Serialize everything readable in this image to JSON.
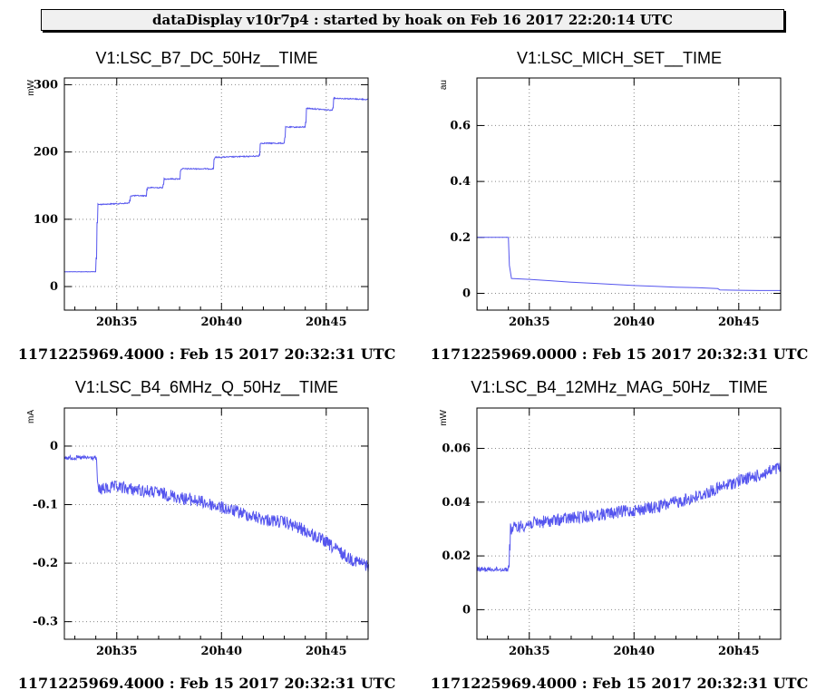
{
  "banner": "dataDisplay v10r7p4 : started by hoak on Feb 16 2017 22:20:14 UTC",
  "x_ticks": [
    "20h35",
    "20h40",
    "20h45"
  ],
  "colors": {
    "trace": "#5555ee",
    "grid": "#888888",
    "frame": "#000000"
  },
  "chart_data": [
    {
      "type": "line",
      "title": "V1:LSC_B7_DC_50Hz__TIME",
      "ylabel": "mW",
      "footer": "1171225969.4000 : Feb 15 2017 20:32:31 UTC",
      "xlim": [
        32.5,
        47.0
      ],
      "ylim": [
        -35,
        310
      ],
      "yticks": [
        0,
        100,
        200,
        300
      ],
      "ytick_labels": [
        "0",
        "100",
        "200",
        "300"
      ],
      "grid": true,
      "noise": 0.6,
      "series": [
        {
          "x": [
            32.5,
            34.0,
            34.05,
            34.1,
            35.6,
            35.65,
            36.4,
            36.45,
            37.2,
            37.25,
            38.0,
            38.05,
            38.6,
            38.65,
            39.6,
            39.65,
            41.8,
            41.85,
            43.0,
            43.05,
            44.0,
            44.05,
            45.3,
            45.35,
            47.0
          ],
          "y": [
            22,
            22,
            90,
            122,
            124,
            135,
            135,
            147,
            147,
            160,
            160,
            175,
            175,
            175,
            175,
            192,
            194,
            213,
            213,
            237,
            237,
            265,
            262,
            280,
            278
          ]
        }
      ]
    },
    {
      "type": "line",
      "title": "V1:LSC_MICH_SET__TIME",
      "ylabel": "au",
      "footer": "1171225969.0000 : Feb 15 2017 20:32:31 UTC",
      "xlim": [
        32.5,
        47.0
      ],
      "ylim": [
        -0.06,
        0.77
      ],
      "yticks": [
        0,
        0.2,
        0.4,
        0.6
      ],
      "ytick_labels": [
        "0",
        "0.2",
        "0.4",
        "0.6"
      ],
      "grid": true,
      "noise": 0,
      "series": [
        {
          "x": [
            32.5,
            34.0,
            34.05,
            34.15,
            35.0,
            36.0,
            37.0,
            38.0,
            39.0,
            40.0,
            41.0,
            42.0,
            43.0,
            44.0,
            44.1,
            45.0,
            46.0,
            47.0
          ],
          "y": [
            0.2,
            0.2,
            0.1,
            0.053,
            0.05,
            0.045,
            0.04,
            0.036,
            0.032,
            0.028,
            0.025,
            0.022,
            0.02,
            0.017,
            0.012,
            0.011,
            0.01,
            0.01
          ]
        }
      ]
    },
    {
      "type": "line",
      "title": "V1:LSC_B4_6MHz_Q_50Hz__TIME",
      "ylabel": "mA",
      "footer": "1171225969.4000 : Feb 15 2017 20:32:31 UTC",
      "xlim": [
        32.5,
        47.0
      ],
      "ylim": [
        -0.33,
        0.065
      ],
      "yticks": [
        -0.3,
        -0.2,
        -0.1,
        0
      ],
      "ytick_labels": [
        "-0.3",
        "-0.2",
        "-0.1",
        "0"
      ],
      "grid": true,
      "noise": 7,
      "series": [
        {
          "x": [
            32.5,
            34.0,
            34.1,
            35.0,
            36.0,
            37.0,
            38.0,
            39.0,
            40.0,
            41.0,
            42.0,
            43.0,
            44.0,
            45.0,
            46.0,
            47.0
          ],
          "y": [
            -0.02,
            -0.02,
            -0.075,
            -0.07,
            -0.075,
            -0.08,
            -0.088,
            -0.095,
            -0.105,
            -0.115,
            -0.125,
            -0.13,
            -0.145,
            -0.165,
            -0.19,
            -0.205
          ]
        }
      ]
    },
    {
      "type": "line",
      "title": "V1:LSC_B4_12MHz_MAG_50Hz__TIME",
      "ylabel": "mW",
      "footer": "1171225969.4000 : Feb 15 2017 20:32:31 UTC",
      "xlim": [
        32.5,
        47.0
      ],
      "ylim": [
        -0.011,
        0.075
      ],
      "yticks": [
        0,
        0.02,
        0.04,
        0.06
      ],
      "ytick_labels": [
        "0",
        "0.02",
        "0.04",
        "0.06"
      ],
      "grid": true,
      "noise": 7,
      "series": [
        {
          "x": [
            32.5,
            34.0,
            34.1,
            35.0,
            36.0,
            37.0,
            38.0,
            39.0,
            40.0,
            41.0,
            42.0,
            43.0,
            44.0,
            45.0,
            46.0,
            47.0
          ],
          "y": [
            0.015,
            0.015,
            0.03,
            0.032,
            0.033,
            0.034,
            0.035,
            0.036,
            0.037,
            0.038,
            0.04,
            0.042,
            0.045,
            0.048,
            0.05,
            0.053
          ]
        }
      ]
    }
  ]
}
